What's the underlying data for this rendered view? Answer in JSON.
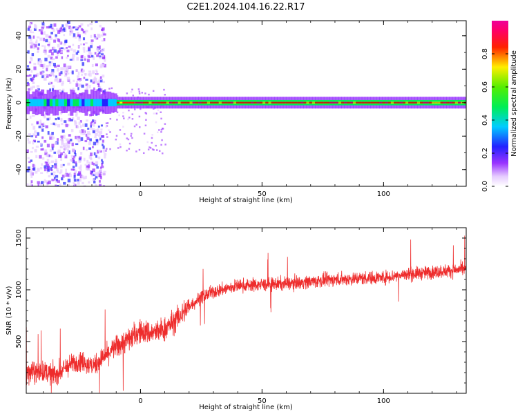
{
  "title": "C2E1.2024.104.16.22.R17",
  "chart_data": [
    {
      "type": "heatmap",
      "xlabel": "Height of straight line (km)",
      "ylabel": "Frequency (Hz)",
      "xlim": [
        -47,
        134
      ],
      "ylim": [
        -50,
        49
      ],
      "xticks": [
        0,
        50,
        100
      ],
      "yticks": [
        -40,
        -20,
        0,
        20,
        40
      ],
      "colorbar": {
        "label": "Normalized spectral amplitude",
        "range": [
          0,
          1
        ],
        "ticks": [
          "0.0",
          "0.2",
          "0.4",
          "0.6",
          "0.8"
        ],
        "colormap": "rainbow (white-purple-blue-cyan-green-yellow-red-magenta)"
      },
      "description_values": {
        "ridge_frequency_hz": 0,
        "noise_band_x_km": [
          -47,
          -15
        ],
        "ridge_peak_amplitude": 0.9
      }
    },
    {
      "type": "line",
      "xlabel": "Height of straight line (km)",
      "ylabel": "SNR (10 * v/v)",
      "xlim": [
        -47,
        134
      ],
      "ylim": [
        0,
        1600
      ],
      "xticks": [
        0,
        50,
        100
      ],
      "yticks": [
        500,
        1000,
        1500
      ],
      "color": "#ee2c2c",
      "x": [
        -47,
        -40,
        -35,
        -30,
        -25,
        -20,
        -15,
        -10,
        -5,
        0,
        5,
        10,
        15,
        20,
        25,
        30,
        40,
        50,
        60,
        70,
        80,
        90,
        100,
        110,
        120,
        134
      ],
      "values": [
        200,
        210,
        180,
        260,
        320,
        260,
        350,
        450,
        520,
        600,
        580,
        620,
        720,
        840,
        930,
        980,
        1040,
        1050,
        1060,
        1080,
        1100,
        1110,
        1120,
        1150,
        1170,
        1200
      ]
    }
  ]
}
